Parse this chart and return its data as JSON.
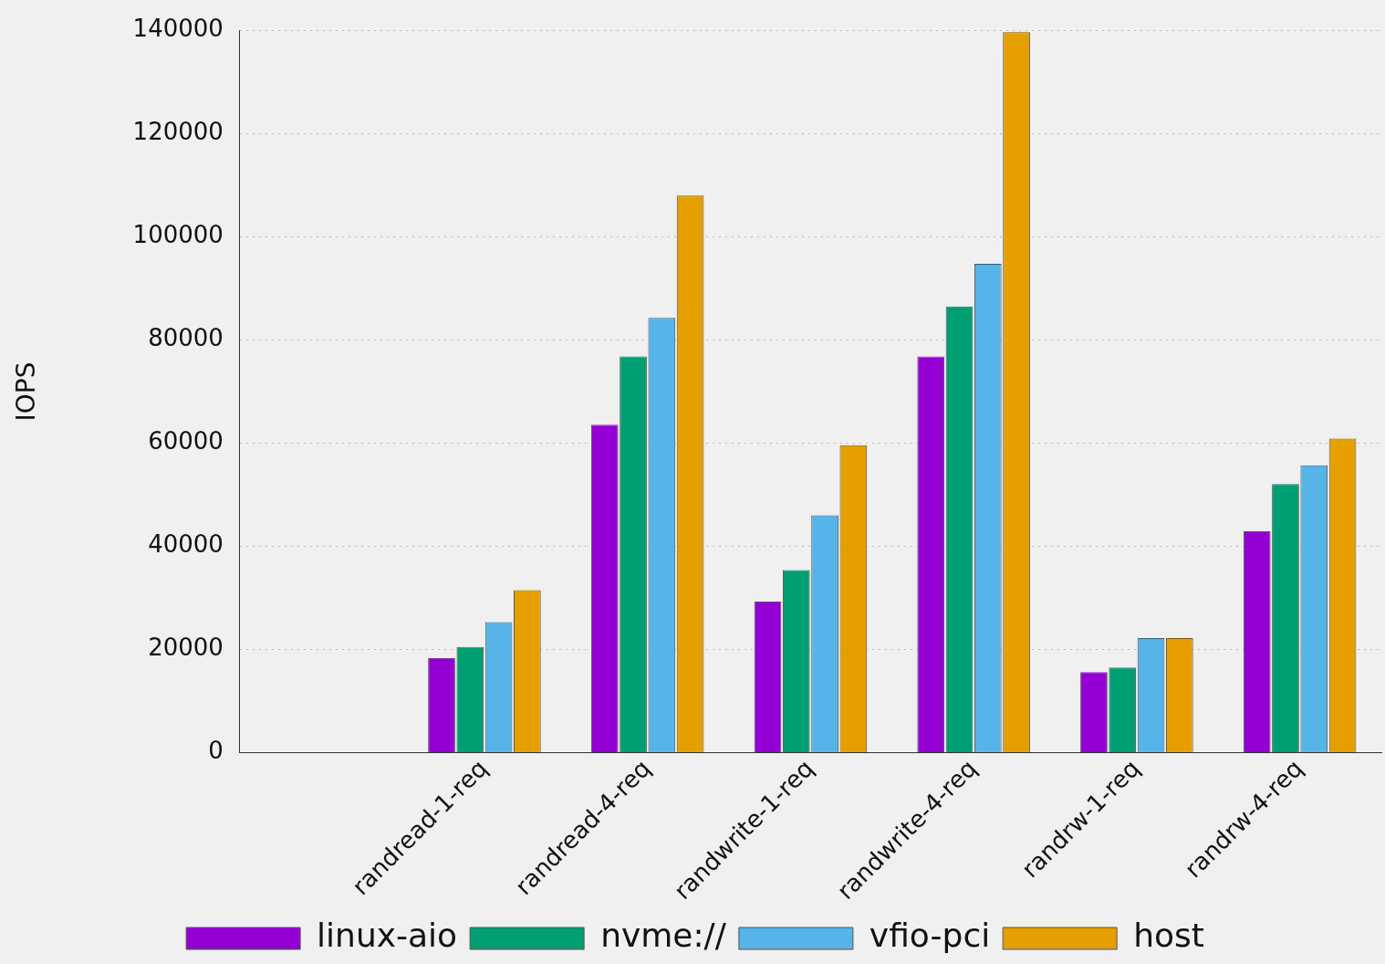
{
  "chart_data": {
    "type": "bar",
    "ylabel": "IOPS",
    "categories": [
      null,
      "randread-1-req",
      "randread-4-req",
      "randwrite-1-req",
      "randwrite-4-req",
      "randrw-1-req",
      "randrw-4-req"
    ],
    "series": [
      {
        "name": "linux-aio",
        "color": "#9400d3",
        "values": [
          null,
          18300,
          63600,
          29300,
          76800,
          15600,
          42900
        ]
      },
      {
        "name": "nvme://",
        "color": "#009e73",
        "values": [
          null,
          20500,
          76800,
          35400,
          86500,
          16500,
          52100
        ]
      },
      {
        "name": "vfio-pci",
        "color": "#56b4e9",
        "values": [
          null,
          25300,
          84300,
          46000,
          94800,
          22200,
          55700
        ]
      },
      {
        "name": "host",
        "color": "#e69f00",
        "values": [
          null,
          31500,
          108000,
          59600,
          139700,
          22200,
          60900
        ]
      }
    ],
    "ylim": [
      0,
      140000
    ],
    "yticks": [
      0,
      20000,
      40000,
      60000,
      80000,
      100000,
      120000,
      140000
    ],
    "grid": "y",
    "legend": "bottom"
  }
}
